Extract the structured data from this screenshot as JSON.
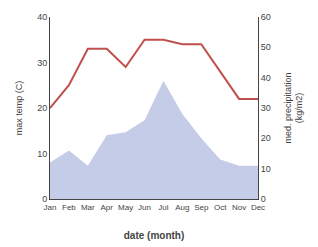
{
  "chart_data": {
    "type": "line",
    "categories": [
      "Jan",
      "Feb",
      "Mar",
      "Apr",
      "May",
      "Jun",
      "Jul",
      "Aug",
      "Sep",
      "Oct",
      "Nov",
      "Dec"
    ],
    "series": [
      {
        "type": "area",
        "color": "#c5cce8",
        "axis": "y2",
        "values": [
          12,
          16,
          11,
          21,
          22,
          26,
          39,
          28,
          20,
          13,
          11,
          11
        ]
      },
      {
        "type": "line",
        "color": "#c0504d",
        "values": [
          20,
          25,
          33,
          33,
          29,
          35,
          35,
          34,
          34,
          28,
          22,
          22
        ]
      }
    ],
    "xlabel": "date (month)",
    "ylabel": "max temp (C)",
    "y2label": "med. precipitation\n(kg/m2)",
    "ylim": [
      0,
      40
    ],
    "yticks": [
      0,
      10,
      20,
      30,
      40
    ],
    "y2lim": [
      0,
      60
    ],
    "y2ticks": [
      0,
      10,
      20,
      30,
      40,
      50,
      60
    ],
    "grid": false
  }
}
